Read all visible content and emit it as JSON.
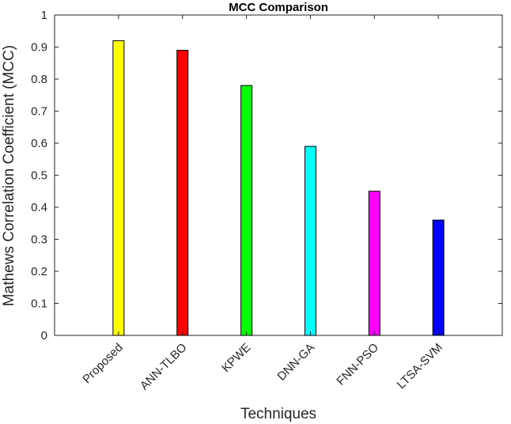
{
  "chart_data": {
    "type": "bar",
    "title": "MCC Comparison",
    "xlabel": "Techniques",
    "ylabel": "Mathews Correlation Coefficient (MCC)",
    "categories": [
      "Proposed",
      "ANN-TLBO",
      "KPWE",
      "DNN-GA",
      "FNN-PSO",
      "LTSA-SVM"
    ],
    "values": [
      0.92,
      0.89,
      0.78,
      0.59,
      0.45,
      0.36
    ],
    "colors": [
      "#ffff00",
      "#ff0000",
      "#00ff00",
      "#00ffff",
      "#ff00ff",
      "#0000ff"
    ],
    "ylim": [
      0,
      1
    ],
    "yticks": [
      "0",
      "0.1",
      "0.2",
      "0.3",
      "0.4",
      "0.5",
      "0.6",
      "0.7",
      "0.8",
      "0.9",
      "1"
    ],
    "grid": false,
    "legend": "none"
  }
}
